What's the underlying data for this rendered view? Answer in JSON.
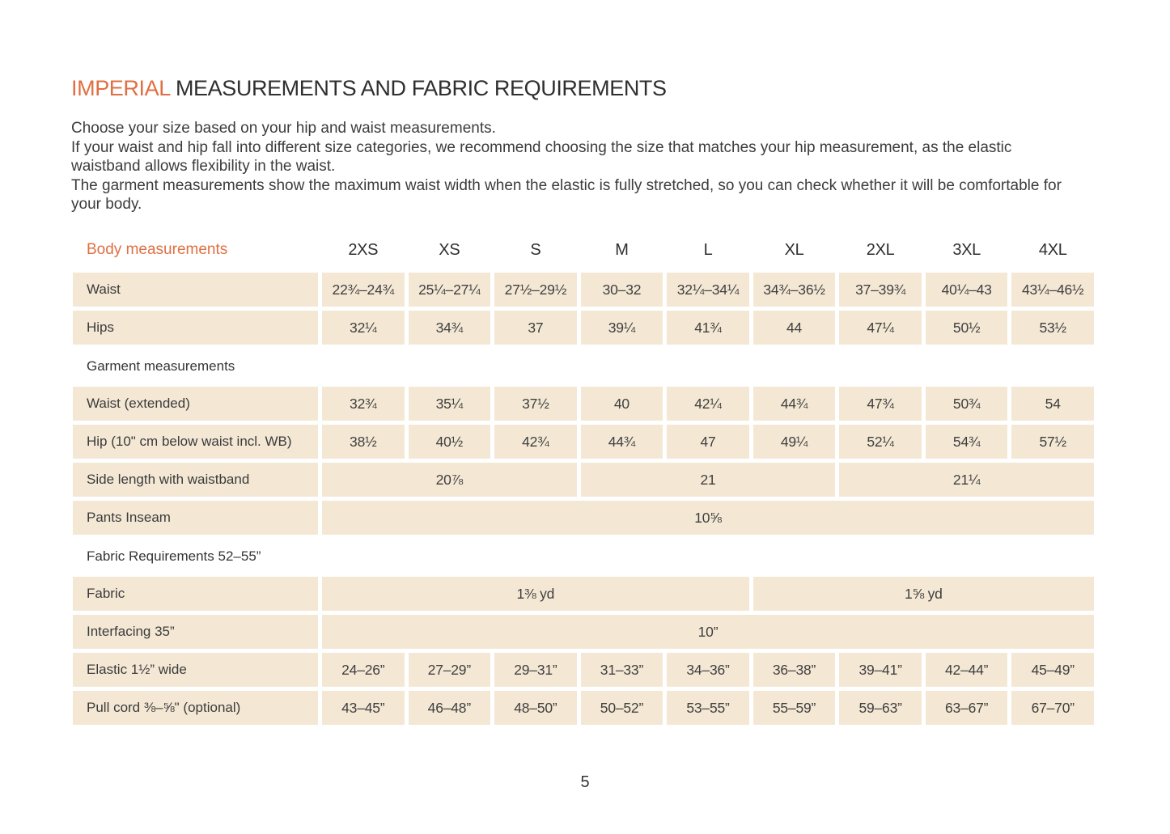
{
  "title": {
    "highlight": "IMPERIAL",
    "rest": "MEASUREMENTS AND FABRIC REQUIREMENTS"
  },
  "intro": {
    "p1": "Choose your size based on your hip and waist measurements.",
    "p2": "If your waist and hip fall into different size categories, we recommend choosing the size that matches your hip measurement, as the elastic waistband allows flexibility in the waist.",
    "p3": "The garment measurements show the maximum waist width when the elastic is fully stretched, so you can check whether it will be comfortable for your body."
  },
  "colors": {
    "accent": "#e06f42",
    "cell_bg": "#f4e8d5",
    "text": "#3a3a3a"
  },
  "table": {
    "header_label": "Body measurements",
    "sizes": [
      "2XS",
      "XS",
      "S",
      "M",
      "L",
      "XL",
      "2XL",
      "3XL",
      "4XL"
    ],
    "rows": [
      {
        "type": "data",
        "label": "Waist",
        "cells": [
          "22¾–24¾",
          "25¼–27¼",
          "27½–29½",
          "30–32",
          "32¼–34¼",
          "34¾–36½",
          "37–39¾",
          "40¼–43",
          "43¼–46½"
        ]
      },
      {
        "type": "data",
        "label": "Hips",
        "cells": [
          "32¼",
          "34¾",
          "37",
          "39¼",
          "41¾",
          "44",
          "47¼",
          "50½",
          "53½"
        ]
      },
      {
        "type": "section",
        "label": "Garment measurements"
      },
      {
        "type": "data",
        "label": "Waist (extended)",
        "cells": [
          "32¾",
          "35¼",
          "37½",
          "40",
          "42¼",
          "44¾",
          "47¾",
          "50¾",
          "54"
        ]
      },
      {
        "type": "data",
        "label": "Hip (10\" cm below waist incl. WB)",
        "cells": [
          "38½",
          "40½",
          "42¾",
          "44¾",
          "47",
          "49¼",
          "52¼",
          "54¾",
          "57½"
        ]
      },
      {
        "type": "data",
        "label": "Side length with waistband",
        "cells": [
          {
            "v": "20⅞",
            "span": 3
          },
          {
            "v": "21",
            "span": 3
          },
          {
            "v": "21¼",
            "span": 3
          }
        ]
      },
      {
        "type": "data",
        "label": "Pants Inseam",
        "cells": [
          {
            "v": "10⅝",
            "span": 9
          }
        ]
      },
      {
        "type": "section",
        "label": "Fabric Requirements 52–55”"
      },
      {
        "type": "data",
        "label": "Fabric",
        "cells": [
          {
            "v": "1⅜ yd",
            "span": 5
          },
          {
            "v": "1⅝ yd",
            "span": 4
          }
        ]
      },
      {
        "type": "data",
        "label": "Interfacing 35”",
        "cells": [
          {
            "v": "10”",
            "span": 9
          }
        ]
      },
      {
        "type": "data",
        "label": "Elastic 1½” wide",
        "cells": [
          "24–26”",
          "27–29”",
          "29–31”",
          "31–33”",
          "34–36”",
          "36–38”",
          "39–41”",
          "42–44”",
          "45–49”"
        ]
      },
      {
        "type": "data",
        "label": "Pull cord ⅜–⅝\" (optional)",
        "cells": [
          "43–45”",
          "46–48”",
          "48–50”",
          "50–52”",
          "53–55”",
          "55–59”",
          "59–63”",
          "63–67”",
          "67–70”"
        ]
      }
    ]
  },
  "page_number": "5"
}
